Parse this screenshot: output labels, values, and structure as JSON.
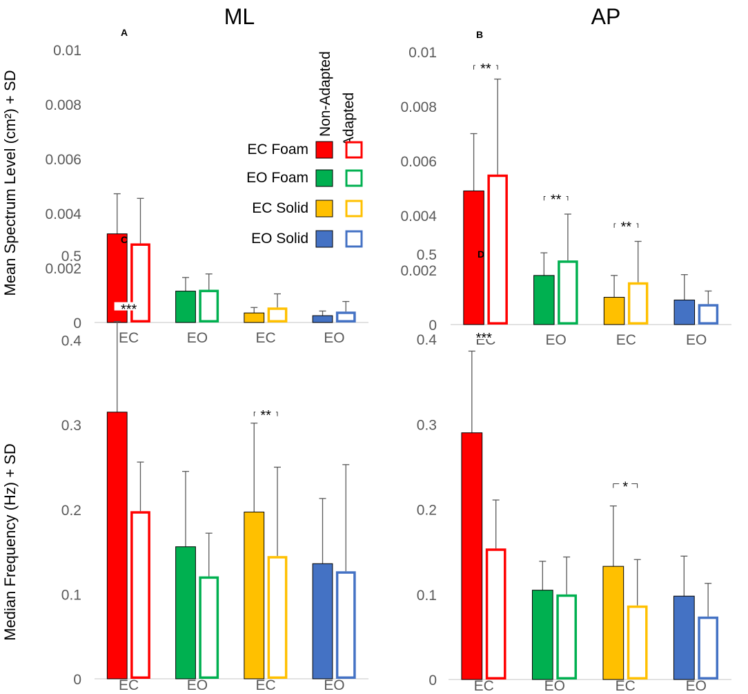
{
  "column_titles": [
    "ML",
    "AP"
  ],
  "ylabels": {
    "top": "Mean Spectrum Level (cm²) + SD",
    "bottom": "Median Frequency (Hz) + SD"
  },
  "legend": {
    "head_non_adapted": "Non-Adapted",
    "head_adapted": "Adapted",
    "entries": [
      {
        "label": "EC Foam",
        "color": "#ff0000"
      },
      {
        "label": "EO Foam",
        "color": "#00b050"
      },
      {
        "label": "EC Solid",
        "color": "#ffc000"
      },
      {
        "label": "EO Solid",
        "color": "#4472c4"
      }
    ]
  },
  "colors": {
    "axis": "#d9d9d9",
    "error_bar": "#595959",
    "text": "#595959"
  },
  "chart_data": [
    {
      "id": "A",
      "panel_label": "A",
      "type": "bar",
      "column": "ML",
      "ylabel": "Mean Spectrum Level (cm²) + SD",
      "ylim": [
        0,
        0.01
      ],
      "yticks": [
        "0",
        "0.002",
        "0.004",
        "0.006",
        "0.008",
        "0.01"
      ],
      "categories": [
        "EC",
        "EO",
        "EC",
        "EO"
      ],
      "series": [
        {
          "name": "Non-Adapted",
          "values": [
            0.00325,
            0.00115,
            0.00035,
            0.00025
          ],
          "sd": [
            0.00147,
            0.0005,
            0.0002,
            0.00017
          ]
        },
        {
          "name": "Adapted",
          "values": [
            0.0029,
            0.0012,
            0.00055,
            0.0004
          ],
          "sd": [
            0.00165,
            0.00058,
            0.0005,
            0.00037
          ]
        }
      ],
      "significance": []
    },
    {
      "id": "B",
      "panel_label": "B",
      "type": "bar",
      "column": "AP",
      "ylabel": "",
      "ylim": [
        0,
        0.01
      ],
      "yticks": [
        "0",
        "0.002",
        "0.004",
        "0.006",
        "0.008",
        "0.01"
      ],
      "categories": [
        "EC",
        "EO",
        "EC",
        "EO"
      ],
      "series": [
        {
          "name": "Non-Adapted",
          "values": [
            0.0049,
            0.0018,
            0.001,
            0.0009
          ],
          "sd": [
            0.0021,
            0.00083,
            0.0008,
            0.00093
          ]
        },
        {
          "name": "Adapted",
          "values": [
            0.0055,
            0.00235,
            0.00155,
            0.00075
          ],
          "sd": [
            0.0035,
            0.0017,
            0.0015,
            0.00048
          ]
        }
      ],
      "significance": [
        {
          "group": 0,
          "label": "**",
          "level": 0.0095
        },
        {
          "group": 1,
          "label": "**",
          "level": 0.0047
        },
        {
          "group": 2,
          "label": "**",
          "level": 0.0037
        }
      ]
    },
    {
      "id": "C",
      "panel_label": "C",
      "type": "bar",
      "column": "ML",
      "ylabel": "Median Frequency (Hz) + SD",
      "ylim": [
        0,
        0.5
      ],
      "yticks": [
        "0",
        "0.1",
        "0.2",
        "0.3",
        "0.4",
        "0.5"
      ],
      "categories": [
        "EC",
        "EO",
        "EC",
        "EO"
      ],
      "series": [
        {
          "name": "Non-Adapted",
          "values": [
            0.315,
            0.156,
            0.197,
            0.136
          ],
          "sd": [
            0.107,
            0.089,
            0.105,
            0.077
          ]
        },
        {
          "name": "Adapted",
          "values": [
            0.198,
            0.121,
            0.145,
            0.127
          ],
          "sd": [
            0.058,
            0.051,
            0.105,
            0.126
          ]
        }
      ],
      "significance": [
        {
          "group": 0,
          "label": "***",
          "level": 0.44
        },
        {
          "group": 2,
          "label": "**",
          "level": 0.315
        }
      ]
    },
    {
      "id": "D",
      "panel_label": "D",
      "type": "bar",
      "column": "AP",
      "ylabel": "",
      "ylim": [
        0,
        0.5
      ],
      "yticks": [
        "0",
        "0.1",
        "0.2",
        "0.3",
        "0.4",
        "0.5"
      ],
      "categories": [
        "EC",
        "EO",
        "EC",
        "EO"
      ],
      "series": [
        {
          "name": "Non-Adapted",
          "values": [
            0.29,
            0.105,
            0.133,
            0.098
          ],
          "sd": [
            0.096,
            0.034,
            0.071,
            0.047
          ]
        },
        {
          "name": "Adapted",
          "values": [
            0.154,
            0.1,
            0.087,
            0.074
          ],
          "sd": [
            0.057,
            0.044,
            0.054,
            0.039
          ]
        }
      ],
      "significance": [
        {
          "group": 0,
          "label": "***",
          "level": 0.405
        },
        {
          "group": 2,
          "label": "*",
          "level": 0.23
        }
      ]
    }
  ]
}
